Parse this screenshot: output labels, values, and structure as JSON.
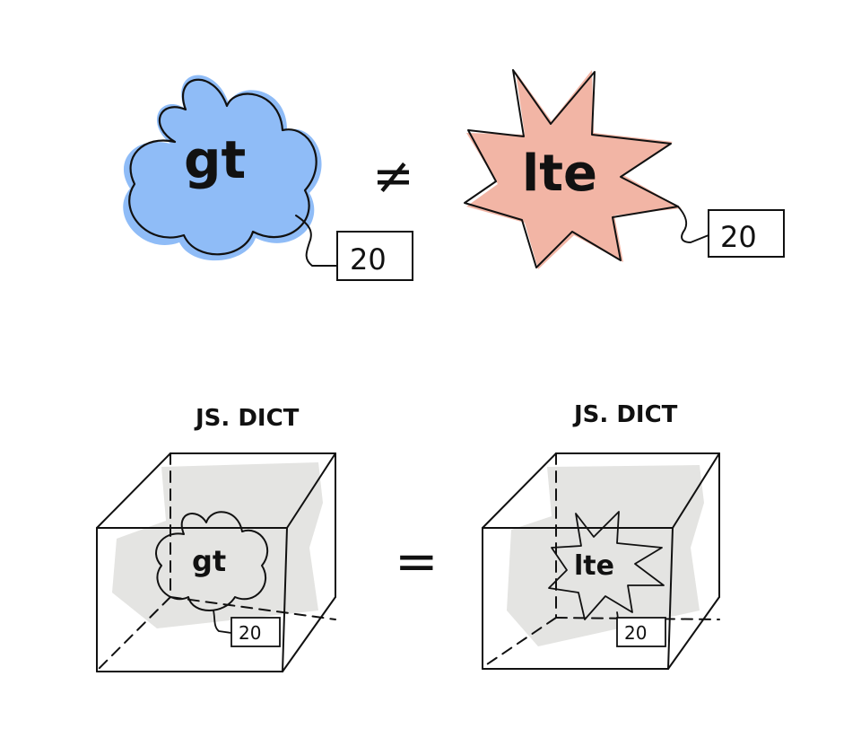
{
  "top": {
    "left_shape_label": "gt",
    "left_tag_value": "20",
    "operator": "≠",
    "right_shape_label": "lte",
    "right_tag_value": "20"
  },
  "bottom": {
    "left_box_title": "JS. DICT",
    "left_shape_label": "gt",
    "left_tag_value": "20",
    "operator": "=",
    "right_box_title": "JS. DICT",
    "right_shape_label": "lte",
    "right_tag_value": "20"
  },
  "colors": {
    "cloud_fill": "#8fbcf7",
    "cloud_fill_dark": "#7aa6e6",
    "star_fill": "#f2b5a5",
    "star_fill_dark": "#e6a090",
    "box_shadow": "#e4e4e2",
    "ink": "#111111"
  }
}
